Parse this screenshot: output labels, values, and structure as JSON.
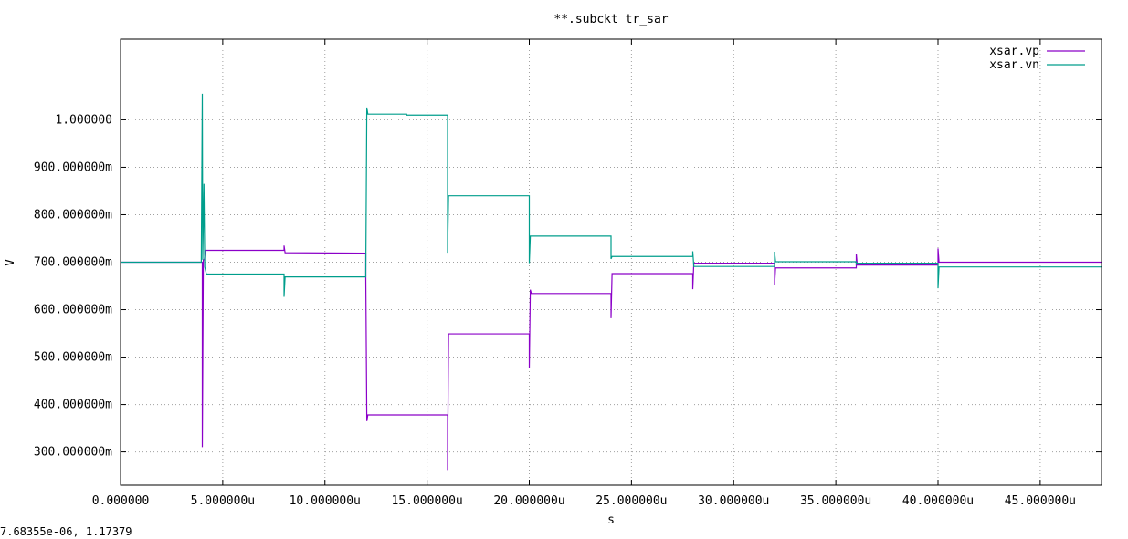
{
  "window": {
    "status_text": "7.68355e-06, 1.17379"
  },
  "colors": {
    "vp": "#8b00c8",
    "vn": "#009e8c",
    "grid": "#a0a0a0",
    "axis": "#000000"
  },
  "chart_data": {
    "type": "line",
    "title": "**.subckt tr_sar",
    "xlabel": "s",
    "ylabel": "V",
    "xlim": [
      0,
      4.8e-05
    ],
    "ylim": [
      0.23,
      1.17
    ],
    "grid": true,
    "legend_position": "top-right",
    "x_ticks": [
      {
        "value": 0,
        "label": "0.000000"
      },
      {
        "value": 5e-06,
        "label": "5.000000u"
      },
      {
        "value": 1e-05,
        "label": "10.000000u"
      },
      {
        "value": 1.5e-05,
        "label": "15.000000u"
      },
      {
        "value": 2e-05,
        "label": "20.000000u"
      },
      {
        "value": 2.5e-05,
        "label": "25.000000u"
      },
      {
        "value": 3e-05,
        "label": "30.000000u"
      },
      {
        "value": 3.5e-05,
        "label": "35.000000u"
      },
      {
        "value": 4e-05,
        "label": "40.000000u"
      },
      {
        "value": 4.5e-05,
        "label": "45.000000u"
      }
    ],
    "y_ticks": [
      {
        "value": 0.3,
        "label": "300.000000m"
      },
      {
        "value": 0.4,
        "label": "400.000000m"
      },
      {
        "value": 0.5,
        "label": "500.000000m"
      },
      {
        "value": 0.6,
        "label": "600.000000m"
      },
      {
        "value": 0.7,
        "label": "700.000000m"
      },
      {
        "value": 0.8,
        "label": "800.000000m"
      },
      {
        "value": 0.9,
        "label": "900.000000m"
      },
      {
        "value": 1.0,
        "label": "1.000000"
      }
    ],
    "series": [
      {
        "name": "xsar.vp",
        "color_key": "vp",
        "points": [
          [
            0,
            0.7
          ],
          [
            4e-06,
            0.7
          ],
          [
            4e-06,
            0.31
          ],
          [
            4.05e-06,
            0.705
          ],
          [
            4.1e-06,
            0.705
          ],
          [
            4.15e-06,
            0.725
          ],
          [
            8e-06,
            0.725
          ],
          [
            8e-06,
            0.735
          ],
          [
            8.05e-06,
            0.72
          ],
          [
            1.2e-05,
            0.719
          ],
          [
            1.2e-05,
            0.67
          ],
          [
            1.205e-05,
            0.365
          ],
          [
            1.21e-05,
            0.378
          ],
          [
            1.6e-05,
            0.378
          ],
          [
            1.6e-05,
            0.262
          ],
          [
            1.605e-05,
            0.549
          ],
          [
            2e-05,
            0.549
          ],
          [
            2e-05,
            0.477
          ],
          [
            2.005e-05,
            0.642
          ],
          [
            2.01e-05,
            0.634
          ],
          [
            2.4e-05,
            0.634
          ],
          [
            2.4e-05,
            0.582
          ],
          [
            2.405e-05,
            0.676
          ],
          [
            2.8e-05,
            0.676
          ],
          [
            2.8e-05,
            0.643
          ],
          [
            2.805e-05,
            0.698
          ],
          [
            3.2e-05,
            0.698
          ],
          [
            3.2e-05,
            0.651
          ],
          [
            3.205e-05,
            0.688
          ],
          [
            3.6e-05,
            0.688
          ],
          [
            3.6e-05,
            0.718
          ],
          [
            3.605e-05,
            0.694
          ],
          [
            4e-05,
            0.694
          ],
          [
            4e-05,
            0.729
          ],
          [
            4.005e-05,
            0.7
          ],
          [
            4.8e-05,
            0.7
          ]
        ]
      },
      {
        "name": "xsar.vn",
        "color_key": "vn",
        "points": [
          [
            0,
            0.7
          ],
          [
            3.95e-06,
            0.7
          ],
          [
            4e-06,
            1.055
          ],
          [
            4.02e-06,
            0.705
          ],
          [
            4.08e-06,
            0.865
          ],
          [
            4.12e-06,
            0.69
          ],
          [
            4.2e-06,
            0.675
          ],
          [
            8e-06,
            0.675
          ],
          [
            8e-06,
            0.627
          ],
          [
            8.05e-06,
            0.669
          ],
          [
            1.2e-05,
            0.669
          ],
          [
            1.2e-05,
            0.68
          ],
          [
            1.205e-05,
            1.026
          ],
          [
            1.21e-05,
            1.012
          ],
          [
            1.4e-05,
            1.012
          ],
          [
            1.4e-05,
            1.01
          ],
          [
            1.6e-05,
            1.01
          ],
          [
            1.6e-05,
            0.72
          ],
          [
            1.605e-05,
            0.84
          ],
          [
            2e-05,
            0.84
          ],
          [
            2e-05,
            0.698
          ],
          [
            2.005e-05,
            0.755
          ],
          [
            2.4e-05,
            0.755
          ],
          [
            2.4e-05,
            0.707
          ],
          [
            2.405e-05,
            0.712
          ],
          [
            2.8e-05,
            0.712
          ],
          [
            2.8e-05,
            0.723
          ],
          [
            2.805e-05,
            0.691
          ],
          [
            3.2e-05,
            0.691
          ],
          [
            3.2e-05,
            0.722
          ],
          [
            3.205e-05,
            0.701
          ],
          [
            3.6e-05,
            0.701
          ],
          [
            3.6e-05,
            0.696
          ],
          [
            3.605e-05,
            0.698
          ],
          [
            4e-05,
            0.698
          ],
          [
            4e-05,
            0.645
          ],
          [
            4.005e-05,
            0.69
          ],
          [
            4.8e-05,
            0.69
          ]
        ]
      }
    ]
  }
}
